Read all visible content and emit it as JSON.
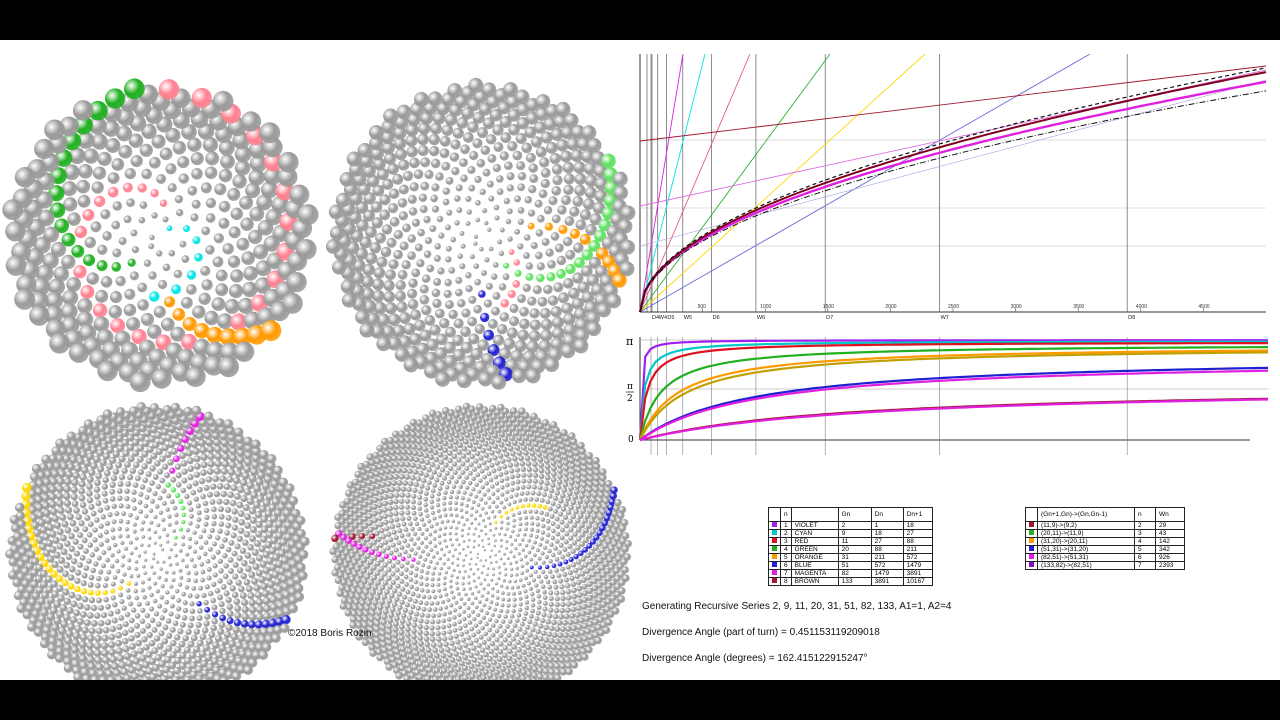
{
  "copyright": "©2018  Boris Rozin",
  "series_text": "Generating Recursive Series   2, 9, 11, 20, 31, 51, 82, 133,       A1=1,   A2=4",
  "angle_turn_text": "Divergence Angle (part of turn) = 0.451153119209018",
  "angle_deg_text": "Divergence Angle (degrees) = 162.415122915247°",
  "divergence_turn": 0.451153119209018,
  "colors": {
    "violet": "#a020f0",
    "cyan": "#00e5e5",
    "red": "#e01020",
    "green": "#20b020",
    "orange": "#ff9900",
    "blue": "#2020d0",
    "magenta": "#e020e0",
    "brown": "#a01830",
    "yellow": "#ffd700",
    "pink": "#ff8090",
    "lightgreen": "#60e060"
  },
  "table1": {
    "headers": [
      "",
      "n",
      "",
      "Gn",
      "Dn",
      "Dn+1"
    ],
    "rows": [
      {
        "color": "#a020f0",
        "n": "1",
        "name": "VIOLET",
        "gn": "2",
        "dn": "1",
        "dn1": "18"
      },
      {
        "color": "#00c8c8",
        "n": "2",
        "name": "CYAN",
        "gn": "9",
        "dn": "18",
        "dn1": "27"
      },
      {
        "color": "#e01020",
        "n": "3",
        "name": "RED",
        "gn": "11",
        "dn": "27",
        "dn1": "88"
      },
      {
        "color": "#20b020",
        "n": "4",
        "name": "GREEN",
        "gn": "20",
        "dn": "88",
        "dn1": "211"
      },
      {
        "color": "#ff9900",
        "n": "5",
        "name": "ORANGE",
        "gn": "31",
        "dn": "211",
        "dn1": "572"
      },
      {
        "color": "#2020d0",
        "n": "6",
        "name": "BLUE",
        "gn": "51",
        "dn": "572",
        "dn1": "1479"
      },
      {
        "color": "#e020e0",
        "n": "7",
        "name": "MAGENTA",
        "gn": "82",
        "dn": "1479",
        "dn1": "3891"
      },
      {
        "color": "#a01830",
        "n": "8",
        "name": "BROWN",
        "gn": "133",
        "dn": "3891",
        "dn1": "10167"
      }
    ]
  },
  "table2": {
    "headers": [
      "",
      "(Gn+1,Gn)->(Gn,Gn-1)",
      "n",
      "Wn"
    ],
    "rows": [
      {
        "color": "#a01830",
        "pair": "(11,9)->(9,2)",
        "n": "2",
        "wn": "29"
      },
      {
        "color": "#20b020",
        "pair": "(20,11)->(11,9)",
        "n": "3",
        "wn": "43"
      },
      {
        "color": "#ff9900",
        "pair": "(31,20)->(20,11)",
        "n": "4",
        "wn": "142"
      },
      {
        "color": "#2020d0",
        "pair": "(51,31)->(31,20)",
        "n": "5",
        "wn": "342"
      },
      {
        "color": "#e020e0",
        "pair": "(82,51)->(51,31)",
        "n": "6",
        "wn": "926"
      },
      {
        "color": "#8010c0",
        "pair": "(133,82)->(82,51)",
        "n": "7",
        "wn": "2393"
      }
    ]
  },
  "top_chart": {
    "x_ticks": [
      "500",
      "1000",
      "1500",
      "2000",
      "2500",
      "3000",
      "3500",
      "4000",
      "4500"
    ],
    "x_max": 5000,
    "markers": [
      {
        "label": "D4",
        "x": 88
      },
      {
        "label": "W4",
        "x": 142
      },
      {
        "label": "D5",
        "x": 211
      },
      {
        "label": "W5",
        "x": 342
      },
      {
        "label": "D6",
        "x": 572
      },
      {
        "label": "W6",
        "x": 926
      },
      {
        "label": "D7",
        "x": 1479
      },
      {
        "label": "W7",
        "x": 2393
      },
      {
        "label": "D8",
        "x": 3891
      }
    ]
  },
  "bottom_chart": {
    "y_labels": {
      "pi": "π",
      "half_num": "π",
      "half_den": "2",
      "zero": "0"
    }
  }
}
